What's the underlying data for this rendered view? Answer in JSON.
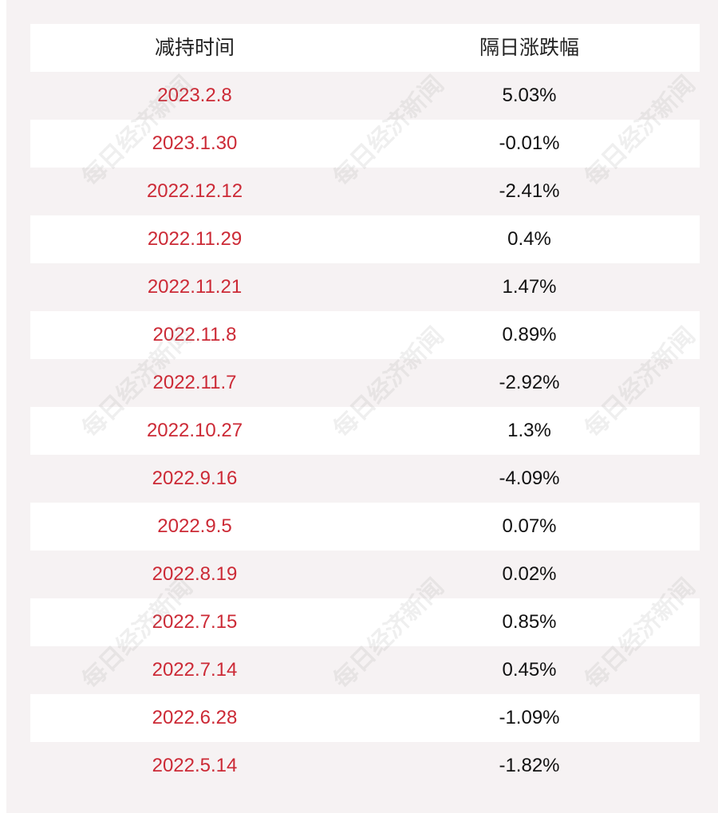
{
  "table": {
    "headers": [
      "减持时间",
      "隔日涨跌幅"
    ],
    "rows": [
      {
        "date": "2023.2.8",
        "change": "5.03%"
      },
      {
        "date": "2023.1.30",
        "change": "-0.01%"
      },
      {
        "date": "2022.12.12",
        "change": "-2.41%"
      },
      {
        "date": "2022.11.29",
        "change": "0.4%"
      },
      {
        "date": "2022.11.21",
        "change": "1.47%"
      },
      {
        "date": "2022.11.8",
        "change": "0.89%"
      },
      {
        "date": "2022.11.7",
        "change": "-2.92%"
      },
      {
        "date": "2022.10.27",
        "change": "1.3%"
      },
      {
        "date": "2022.9.16",
        "change": "-4.09%"
      },
      {
        "date": "2022.9.5",
        "change": "0.07%"
      },
      {
        "date": "2022.8.19",
        "change": "0.02%"
      },
      {
        "date": "2022.7.15",
        "change": "0.85%"
      },
      {
        "date": "2022.7.14",
        "change": "0.45%"
      },
      {
        "date": "2022.6.28",
        "change": "-1.09%"
      },
      {
        "date": "2022.5.14",
        "change": "-1.82%"
      }
    ]
  },
  "watermark": {
    "text": "每日经济新闻"
  },
  "colors": {
    "date_text": "#cc2a36",
    "change_text": "#111111",
    "header_text": "#222222",
    "tinted_row": "#f6f2f3",
    "light_row": "#ffffff"
  }
}
